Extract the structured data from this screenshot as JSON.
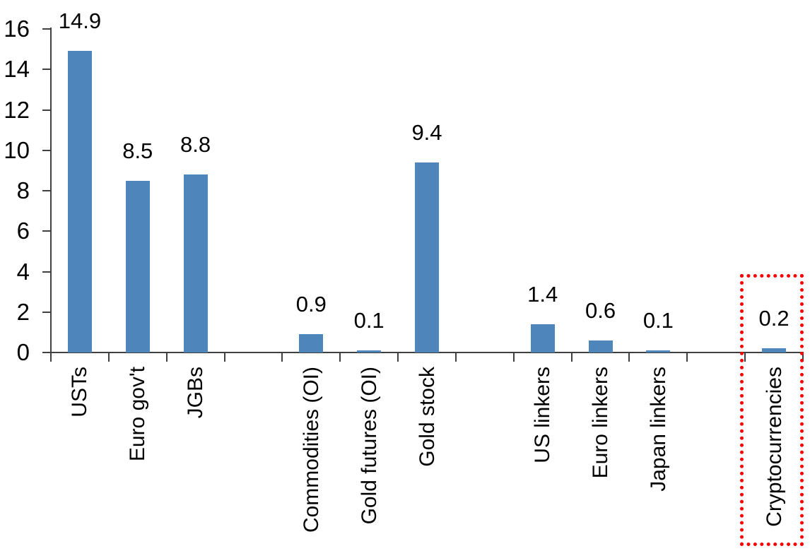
{
  "chart_data": {
    "type": "bar",
    "categories": [
      "USTs",
      "Euro gov't",
      "JGBs",
      "Commodities (OI)",
      "Gold futures (OI)",
      "Gold stock",
      "US linkers",
      "Euro linkers",
      "Japan linkers",
      "Cryptocurrencies"
    ],
    "values": [
      14.9,
      8.5,
      8.8,
      0.9,
      0.1,
      9.4,
      1.4,
      0.6,
      0.1,
      0.2
    ],
    "points": [
      {
        "label": "USTs",
        "value": 14.9,
        "display": "14.9",
        "slot": 1
      },
      {
        "label": "Euro gov't",
        "value": 8.5,
        "display": "8.5",
        "slot": 2
      },
      {
        "label": "JGBs",
        "value": 8.8,
        "display": "8.8",
        "slot": 3
      },
      {
        "label": "Commodities (OI)",
        "value": 0.9,
        "display": "0.9",
        "slot": 5
      },
      {
        "label": "Gold futures (OI)",
        "value": 0.1,
        "display": "0.1",
        "slot": 6
      },
      {
        "label": "Gold stock",
        "value": 9.4,
        "display": "9.4",
        "slot": 7
      },
      {
        "label": "US linkers",
        "value": 1.4,
        "display": "1.4",
        "slot": 9
      },
      {
        "label": "Euro linkers",
        "value": 0.6,
        "display": "0.6",
        "slot": 10
      },
      {
        "label": "Japan linkers",
        "value": 0.1,
        "display": "0.1",
        "slot": 11
      },
      {
        "label": "Cryptocurrencies",
        "value": 0.2,
        "display": "0.2",
        "slot": 13
      }
    ],
    "total_slots": 13,
    "ylim": [
      0,
      16
    ],
    "ytick_step": 2,
    "ytick_labels": [
      "0",
      "2",
      "4",
      "6",
      "8",
      "10",
      "12",
      "14",
      "16"
    ],
    "grid": "off",
    "legend": "none",
    "bar_color": "#4e86bb",
    "axis_color": "#404040",
    "text_color": "#000000",
    "highlight": {
      "target": "Cryptocurrencies",
      "shape": "dotted-rectangle",
      "color": "#ff0000"
    }
  }
}
